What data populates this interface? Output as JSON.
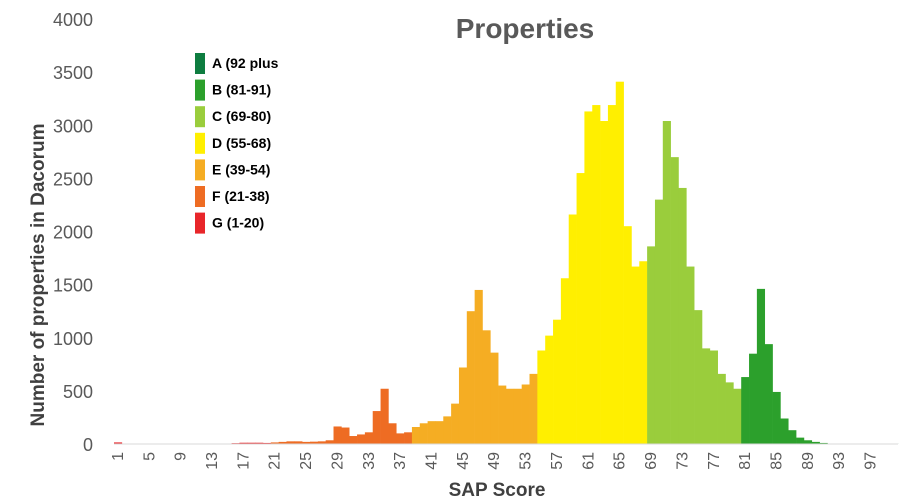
{
  "chart_data": {
    "type": "bar",
    "title": "Properties",
    "xlabel": "SAP Score",
    "ylabel": "Number of properties in Dacorum",
    "ylim": [
      0,
      4000
    ],
    "yticks": [
      0,
      500,
      1000,
      1500,
      2000,
      2500,
      3000,
      3500,
      4000
    ],
    "xticks": [
      1,
      5,
      9,
      13,
      17,
      21,
      25,
      29,
      33,
      37,
      41,
      45,
      49,
      53,
      57,
      61,
      65,
      69,
      73,
      77,
      81,
      85,
      89,
      93,
      97
    ],
    "grid": false,
    "legend_position": "top-left",
    "bands": [
      {
        "name": "A (92 plus",
        "color": "#0e7d40",
        "from": 92,
        "to": 100
      },
      {
        "name": "B (81-91)",
        "color": "#2ca02c",
        "from": 81,
        "to": 91
      },
      {
        "name": "C (69-80)",
        "color": "#9acd3c",
        "from": 69,
        "to": 80
      },
      {
        "name": "D (55-68)",
        "color": "#ffef00",
        "from": 55,
        "to": 68
      },
      {
        "name": "E (39-54)",
        "color": "#f5ad23",
        "from": 39,
        "to": 54
      },
      {
        "name": "F (21-38)",
        "color": "#ee6c23",
        "from": 21,
        "to": 38
      },
      {
        "name": "G (1-20)",
        "color": "#e8262a",
        "from": 1,
        "to": 20
      }
    ],
    "x": [
      1,
      2,
      3,
      4,
      5,
      6,
      7,
      8,
      9,
      10,
      11,
      12,
      13,
      14,
      15,
      16,
      17,
      18,
      19,
      20,
      21,
      22,
      23,
      24,
      25,
      26,
      27,
      28,
      29,
      30,
      31,
      32,
      33,
      34,
      35,
      36,
      37,
      38,
      39,
      40,
      41,
      42,
      43,
      44,
      45,
      46,
      47,
      48,
      49,
      50,
      51,
      52,
      53,
      54,
      55,
      56,
      57,
      58,
      59,
      60,
      61,
      62,
      63,
      64,
      65,
      66,
      67,
      68,
      69,
      70,
      71,
      72,
      73,
      74,
      75,
      76,
      77,
      78,
      79,
      80,
      81,
      82,
      83,
      84,
      85,
      86,
      87,
      88,
      89,
      90,
      91,
      92,
      93,
      94,
      95,
      96,
      97,
      98,
      99,
      100
    ],
    "values": [
      15,
      3,
      3,
      3,
      3,
      3,
      3,
      3,
      3,
      3,
      3,
      3,
      3,
      3,
      3,
      8,
      12,
      12,
      12,
      10,
      15,
      20,
      25,
      25,
      20,
      22,
      25,
      35,
      165,
      155,
      75,
      90,
      110,
      310,
      520,
      195,
      100,
      110,
      160,
      195,
      215,
      215,
      260,
      380,
      720,
      1250,
      1450,
      1070,
      860,
      550,
      520,
      520,
      560,
      660,
      880,
      1020,
      1170,
      1560,
      2160,
      2550,
      3130,
      3190,
      3040,
      3190,
      3410,
      2050,
      1670,
      1720,
      1860,
      2300,
      3040,
      2700,
      2410,
      1670,
      1260,
      900,
      880,
      660,
      580,
      520,
      630,
      850,
      1460,
      940,
      490,
      240,
      130,
      60,
      35,
      20,
      10,
      4,
      3,
      2,
      2,
      2,
      2,
      2,
      2,
      2
    ]
  }
}
